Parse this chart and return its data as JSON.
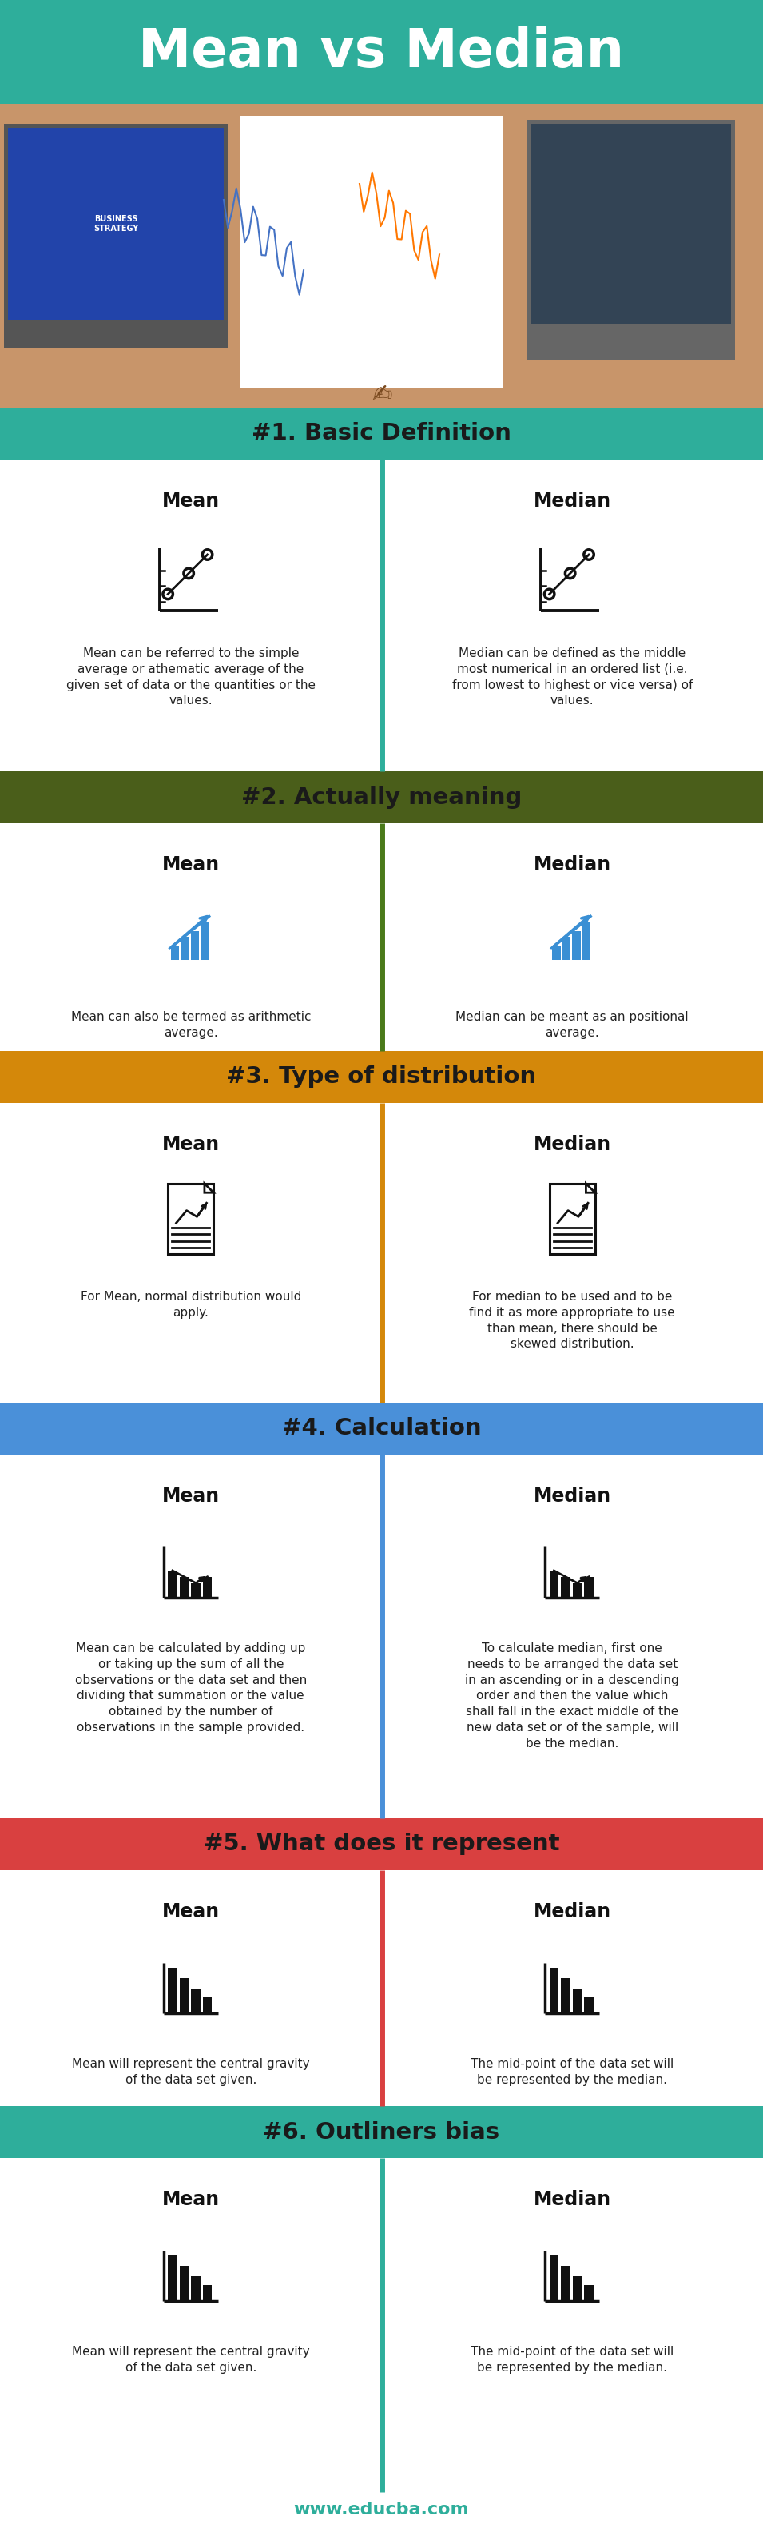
{
  "title": "Mean vs Median",
  "title_bg": "#2eae9b",
  "white_bg": "#ffffff",
  "footer": "www.educba.com",
  "footer_color": "#2eae9b",
  "photo_bg": "#b8956a",
  "sections": [
    {
      "number": "#1.",
      "title": "Basic Definition",
      "mean_title": "Mean",
      "median_title": "Median",
      "mean_text": "Mean can be referred to the simple\naverage or athematic average of the\ngiven set of data or the quantities or the\nvalues.",
      "median_text": "Median can be defined as the middle\nmost numerical in an ordered list (i.e.\nfrom lowest to highest or vice versa) of\nvalues.",
      "icon_type": "line_chart",
      "header_color": "#2eae9b",
      "divider_color": "#2eae9b",
      "header_text_color": "#1a1a1a"
    },
    {
      "number": "#2.",
      "title": "Actually meaning",
      "mean_title": "Mean",
      "median_title": "Median",
      "mean_text": "Mean can also be termed as arithmetic\naverage.",
      "median_text": "Median can be meant as an positional\naverage.",
      "icon_type": "bar_up_arrow",
      "header_color": "#4a5e1a",
      "divider_color": "#4a7a1a",
      "header_text_color": "#1a1a1a"
    },
    {
      "number": "#3.",
      "title": "Type of distribution",
      "mean_title": "Mean",
      "median_title": "Median",
      "mean_text": "For Mean, normal distribution would\napply.",
      "median_text": "For median to be used and to be\nfind it as more appropriate to use\nthan mean, there should be\nskewed distribution.",
      "icon_type": "document_chart",
      "header_color": "#d4880a",
      "divider_color": "#d4880a",
      "header_text_color": "#1a1a1a"
    },
    {
      "number": "#4.",
      "title": "Calculation",
      "mean_title": "Mean",
      "median_title": "Median",
      "mean_text": "Mean can be calculated by adding up\nor taking up the sum of all the\nobservations or the data set and then\ndividing that summation or the value\nobtained by the number of\nobservations in the sample provided.",
      "median_text": "To calculate median, first one\nneeds to be arranged the data set\nin an ascending or in a descending\norder and then the value which\nshall fall in the exact middle of the\nnew data set or of the sample, will\nbe the median.",
      "icon_type": "bar_line_chart",
      "header_color": "#4a90d9",
      "divider_color": "#4a90d9",
      "header_text_color": "#1a1a1a"
    },
    {
      "number": "#5.",
      "title": "What does it represent",
      "mean_title": "Mean",
      "median_title": "Median",
      "mean_text": "Mean will represent the central gravity\nof the data set given.",
      "median_text": "The mid-point of the data set will\nbe represented by the median.",
      "icon_type": "bar_down_small",
      "header_color": "#d94040",
      "divider_color": "#d94040",
      "header_text_color": "#1a1a1a"
    },
    {
      "number": "#6.",
      "title": "Outliners bias",
      "mean_title": "Mean",
      "median_title": "Median",
      "mean_text": "Mean will represent the central gravity\nof the data set given.",
      "median_text": "The mid-point of the data set will\nbe represented by the median.",
      "icon_type": "bar_down_small",
      "header_color": "#2eae9b",
      "divider_color": "#2eae9b",
      "header_text_color": "#1a1a1a"
    }
  ]
}
